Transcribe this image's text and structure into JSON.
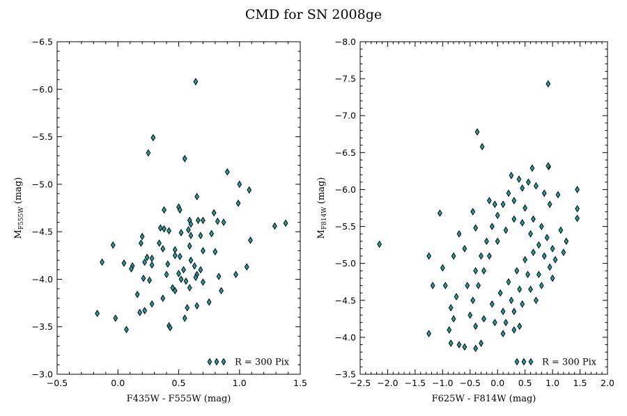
{
  "figure": {
    "title": "CMD for SN 2008ge"
  },
  "colors": {
    "marker_fill": "#1aa3a3",
    "marker_edge": "#000000",
    "axes": "#000000",
    "background": "#ffffff"
  },
  "chart_data": [
    {
      "type": "scatter",
      "marker": "thin_diamond",
      "xlabel": "F435W - F555W (mag)",
      "ylabel_main": "M",
      "ylabel_sub": "F555W",
      "ylabel_unit": " (mag)",
      "xlim": [
        -0.5,
        1.5
      ],
      "ylim": [
        -3.0,
        -6.5
      ],
      "y_inverted": true,
      "xticks": [
        -0.5,
        0.0,
        0.5,
        1.0,
        1.5
      ],
      "xtick_labels": [
        "−0.5",
        "0.0",
        "0.5",
        "1.0",
        "1.5"
      ],
      "yticks": [
        -3.0,
        -3.5,
        -4.0,
        -4.5,
        -5.0,
        -5.5,
        -6.0,
        -6.5
      ],
      "ytick_labels": [
        "−3.0",
        "−3.5",
        "−4.0",
        "−4.5",
        "−5.0",
        "−5.5",
        "−6.0",
        "−6.5"
      ],
      "grid": false,
      "legend": {
        "label": "R = 300 Pix",
        "location": "lower right"
      },
      "points": [
        [
          0.64,
          -6.08
        ],
        [
          0.29,
          -5.49
        ],
        [
          0.25,
          -5.33
        ],
        [
          0.55,
          -5.27
        ],
        [
          0.9,
          -5.13
        ],
        [
          1.0,
          -5.0
        ],
        [
          1.08,
          -4.94
        ],
        [
          0.65,
          -4.87
        ],
        [
          0.99,
          -4.8
        ],
        [
          0.5,
          -4.76
        ],
        [
          0.51,
          -4.73
        ],
        [
          0.38,
          -4.73
        ],
        [
          0.79,
          -4.7
        ],
        [
          0.59,
          -4.62
        ],
        [
          0.7,
          -4.62
        ],
        [
          0.66,
          -4.62
        ],
        [
          0.6,
          -4.58
        ],
        [
          0.82,
          -4.61
        ],
        [
          0.87,
          -4.6
        ],
        [
          1.29,
          -4.56
        ],
        [
          1.38,
          -4.59
        ],
        [
          0.35,
          -4.54
        ],
        [
          0.38,
          -4.53
        ],
        [
          0.42,
          -4.51
        ],
        [
          0.58,
          -4.52
        ],
        [
          0.52,
          -4.49
        ],
        [
          0.6,
          -4.46
        ],
        [
          0.68,
          -4.46
        ],
        [
          0.77,
          -4.48
        ],
        [
          0.2,
          -4.45
        ],
        [
          1.09,
          -4.41
        ],
        [
          0.19,
          -4.38
        ],
        [
          0.34,
          -4.38
        ],
        [
          0.59,
          -4.35
        ],
        [
          -0.04,
          -4.36
        ],
        [
          0.37,
          -4.32
        ],
        [
          0.47,
          -4.31
        ],
        [
          0.7,
          -4.3
        ],
        [
          0.8,
          -4.29
        ],
        [
          0.24,
          -4.23
        ],
        [
          0.47,
          -4.25
        ],
        [
          0.51,
          -4.24
        ],
        [
          0.28,
          -4.22
        ],
        [
          0.6,
          -4.2
        ],
        [
          0.05,
          -4.17
        ],
        [
          0.22,
          -4.18
        ],
        [
          0.41,
          -4.16
        ],
        [
          -0.13,
          -4.18
        ],
        [
          0.12,
          -4.14
        ],
        [
          0.63,
          -4.14
        ],
        [
          0.28,
          -4.15
        ],
        [
          0.11,
          -4.11
        ],
        [
          0.54,
          -4.1
        ],
        [
          0.68,
          -4.1
        ],
        [
          1.06,
          -4.13
        ],
        [
          0.4,
          -4.05
        ],
        [
          0.5,
          -4.06
        ],
        [
          0.65,
          -4.05
        ],
        [
          0.83,
          -4.03
        ],
        [
          0.97,
          -4.05
        ],
        [
          0.21,
          -4.01
        ],
        [
          0.26,
          -3.99
        ],
        [
          0.52,
          -4.0
        ],
        [
          0.56,
          -3.98
        ],
        [
          0.64,
          -4.02
        ],
        [
          0.7,
          -3.97
        ],
        [
          0.45,
          -3.91
        ],
        [
          0.59,
          -3.91
        ],
        [
          0.47,
          -3.88
        ],
        [
          0.85,
          -3.88
        ],
        [
          0.16,
          -3.84
        ],
        [
          0.37,
          -3.8
        ],
        [
          0.75,
          -3.76
        ],
        [
          0.28,
          -3.74
        ],
        [
          0.57,
          -3.7
        ],
        [
          0.65,
          -3.72
        ],
        [
          0.18,
          -3.65
        ],
        [
          0.22,
          -3.67
        ],
        [
          -0.17,
          -3.64
        ],
        [
          0.55,
          -3.59
        ],
        [
          -0.02,
          -3.59
        ],
        [
          0.42,
          -3.51
        ],
        [
          0.43,
          -3.49
        ],
        [
          0.07,
          -3.47
        ]
      ]
    },
    {
      "type": "scatter",
      "marker": "thin_diamond",
      "xlabel": "F625W - F814W (mag)",
      "ylabel_main": "M",
      "ylabel_sub": "F814W",
      "ylabel_unit": " (mag)",
      "xlim": [
        -2.5,
        2.0
      ],
      "ylim": [
        -3.5,
        -8.0
      ],
      "y_inverted": true,
      "xticks": [
        -2.5,
        -2.0,
        -1.5,
        -1.0,
        -0.5,
        0.0,
        0.5,
        1.0,
        1.5,
        2.0
      ],
      "xtick_labels": [
        "−2.5",
        "−2.0",
        "−1.5",
        "−1.0",
        "−0.5",
        "0.0",
        "0.5",
        "1.0",
        "1.5",
        "2.0"
      ],
      "yticks": [
        -3.5,
        -4.0,
        -4.5,
        -5.0,
        -5.5,
        -6.0,
        -6.5,
        -7.0,
        -7.5,
        -8.0
      ],
      "ytick_labels": [
        "−3.5",
        "−4.0",
        "−4.5",
        "−5.0",
        "−5.5",
        "−6.0",
        "−6.5",
        "−7.0",
        "−7.5",
        "−8.0"
      ],
      "grid": false,
      "legend": {
        "label": "R = 300 Pix",
        "location": "lower right"
      },
      "points": [
        [
          0.92,
          -7.43
        ],
        [
          -0.37,
          -6.78
        ],
        [
          -0.28,
          -6.58
        ],
        [
          0.93,
          -6.31
        ],
        [
          0.92,
          -6.32
        ],
        [
          0.63,
          -6.29
        ],
        [
          0.25,
          -6.19
        ],
        [
          0.39,
          -6.14
        ],
        [
          0.56,
          -6.1
        ],
        [
          1.45,
          -6.0
        ],
        [
          1.1,
          -5.93
        ],
        [
          -0.15,
          -5.85
        ],
        [
          0.95,
          -5.8
        ],
        [
          1.45,
          -5.74
        ],
        [
          -1.05,
          -5.68
        ],
        [
          1.45,
          -5.61
        ],
        [
          -0.4,
          -5.48
        ],
        [
          -2.15,
          -5.26
        ],
        [
          -1.25,
          -5.1
        ],
        [
          -0.6,
          -5.2
        ],
        [
          -1.0,
          -4.94
        ],
        [
          -1.18,
          -4.7
        ],
        [
          -0.85,
          -4.4
        ],
        [
          -0.8,
          -4.25
        ],
        [
          -0.88,
          -4.1
        ],
        [
          -1.25,
          -4.05
        ],
        [
          -0.85,
          -3.92
        ],
        [
          -0.7,
          -3.9
        ],
        [
          -0.6,
          -3.87
        ],
        [
          -0.4,
          -3.85
        ],
        [
          -0.3,
          -3.92
        ],
        [
          0.1,
          -4.05
        ],
        [
          0.3,
          -4.1
        ],
        [
          0.4,
          -4.15
        ],
        [
          0.7,
          -4.5
        ],
        [
          0.8,
          -4.7
        ],
        [
          1.0,
          -4.8
        ],
        [
          1.2,
          -5.15
        ],
        [
          1.25,
          -5.3
        ],
        [
          1.15,
          -5.45
        ],
        [
          0.85,
          -5.95
        ],
        [
          0.7,
          -6.05
        ],
        [
          0.45,
          -6.02
        ],
        [
          0.2,
          -5.95
        ],
        [
          -0.05,
          -5.8
        ],
        [
          -0.45,
          -5.7
        ],
        [
          -0.7,
          -5.4
        ],
        [
          -0.8,
          -5.1
        ],
        [
          -0.95,
          -4.7
        ],
        [
          -0.75,
          -4.55
        ],
        [
          -0.55,
          -4.7
        ],
        [
          -0.4,
          -4.9
        ],
        [
          -0.3,
          -5.1
        ],
        [
          -0.2,
          -5.3
        ],
        [
          -0.1,
          -5.5
        ],
        [
          0.0,
          -5.65
        ],
        [
          0.1,
          -5.8
        ],
        [
          0.3,
          -5.85
        ],
        [
          0.5,
          -5.75
        ],
        [
          0.65,
          -5.6
        ],
        [
          0.8,
          -5.5
        ],
        [
          0.9,
          -5.35
        ],
        [
          1.0,
          -5.2
        ],
        [
          1.05,
          -5.05
        ],
        [
          0.95,
          -4.95
        ],
        [
          0.85,
          -5.1
        ],
        [
          0.75,
          -5.25
        ],
        [
          0.6,
          -5.4
        ],
        [
          0.45,
          -5.55
        ],
        [
          0.3,
          -5.6
        ],
        [
          0.15,
          -5.45
        ],
        [
          0.0,
          -5.3
        ],
        [
          -0.15,
          -5.1
        ],
        [
          -0.25,
          -4.9
        ],
        [
          -0.35,
          -4.7
        ],
        [
          -0.45,
          -4.5
        ],
        [
          -0.5,
          -4.3
        ],
        [
          -0.4,
          -4.15
        ],
        [
          -0.25,
          -4.25
        ],
        [
          -0.1,
          -4.45
        ],
        [
          0.05,
          -4.6
        ],
        [
          0.2,
          -4.75
        ],
        [
          0.35,
          -4.9
        ],
        [
          0.5,
          -5.05
        ],
        [
          0.65,
          -5.15
        ],
        [
          0.55,
          -4.85
        ],
        [
          0.4,
          -4.65
        ],
        [
          0.25,
          -4.5
        ],
        [
          0.1,
          -4.35
        ],
        [
          -0.05,
          -4.2
        ],
        [
          0.15,
          -4.2
        ],
        [
          0.3,
          -4.35
        ],
        [
          0.45,
          -4.45
        ],
        [
          0.6,
          -4.65
        ],
        [
          0.75,
          -4.85
        ]
      ]
    }
  ]
}
